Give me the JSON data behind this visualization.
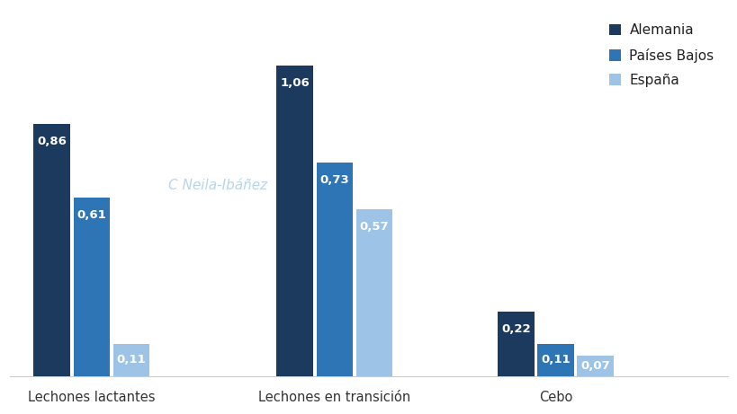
{
  "categories": [
    "Lechones lactantes",
    "Lechones en transición",
    "Cebo"
  ],
  "series": [
    {
      "label": "Alemania",
      "color": "#1b3a5e",
      "values": [
        0.86,
        1.06,
        0.22
      ]
    },
    {
      "label": "Países Bajos",
      "color": "#2e75b6",
      "values": [
        0.61,
        0.73,
        0.11
      ]
    },
    {
      "label": "España",
      "color": "#9dc3e6",
      "values": [
        0.11,
        0.57,
        0.07
      ]
    }
  ],
  "ylim": [
    0,
    1.25
  ],
  "bar_width": 0.18,
  "watermark_text": "C Neila-Ibáñez",
  "watermark_color": "#b8d5ea",
  "background_color": "#ffffff",
  "axis_label_fontsize": 10.5,
  "legend_fontsize": 11,
  "value_fontsize": 9.5,
  "value_color": "#ffffff",
  "group_centers": [
    0.42,
    1.52,
    2.52
  ]
}
